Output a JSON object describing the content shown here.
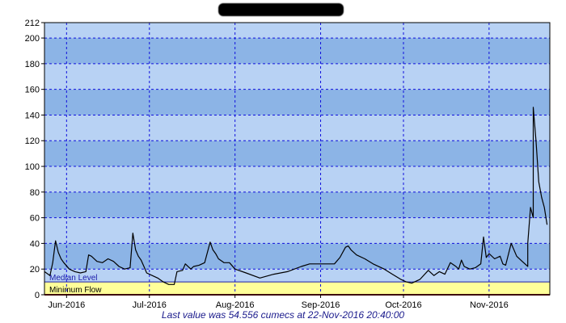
{
  "title": "",
  "footer": "Last value was 54.556 cumecs at 22-Nov-2016 20:40:00",
  "colors": {
    "band_dark": "#8cb4e6",
    "band_light": "#b8d2f4",
    "grid": "#1010dd",
    "median_line": "#1a1aaa",
    "minimum_band": "#ffff99",
    "minimum_line": "#7a0f0f",
    "series": "#000000",
    "footer_text": "#1a1a8c"
  },
  "chart_data": {
    "type": "line",
    "xlabel": "",
    "ylabel": "",
    "x_range": [
      "2016-05-24",
      "2016-11-23"
    ],
    "ylim": [
      0,
      212
    ],
    "yticks": [
      0,
      20,
      40,
      60,
      80,
      100,
      120,
      140,
      160,
      180,
      200,
      212
    ],
    "xticks": [
      {
        "date": "2016-06-01",
        "label": "Jun-2016"
      },
      {
        "date": "2016-07-01",
        "label": "Jul-2016"
      },
      {
        "date": "2016-08-01",
        "label": "Aug-2016"
      },
      {
        "date": "2016-09-01",
        "label": "Sep-2016"
      },
      {
        "date": "2016-10-01",
        "label": "Oct-2016"
      },
      {
        "date": "2016-11-01",
        "label": "Nov-2016"
      }
    ],
    "grid": true,
    "reference_levels": [
      {
        "name": "Median Level",
        "value": 10
      },
      {
        "name": "Minimum Flow",
        "value": 0
      }
    ],
    "series": [
      {
        "x": [
          "2016-05-24",
          "2016-05-26",
          "2016-05-27",
          "2016-05-28",
          "2016-05-29",
          "2016-05-30",
          "2016-05-31",
          "2016-06-02",
          "2016-06-04",
          "2016-06-06",
          "2016-06-08",
          "2016-06-09",
          "2016-06-10",
          "2016-06-12",
          "2016-06-14",
          "2016-06-16",
          "2016-06-18",
          "2016-06-20",
          "2016-06-22",
          "2016-06-24",
          "2016-06-25",
          "2016-06-26",
          "2016-06-27",
          "2016-06-28",
          "2016-06-29",
          "2016-06-30",
          "2016-07-02",
          "2016-07-04",
          "2016-07-06",
          "2016-07-08",
          "2016-07-10",
          "2016-07-11",
          "2016-07-13",
          "2016-07-14",
          "2016-07-16",
          "2016-07-17",
          "2016-07-19",
          "2016-07-21",
          "2016-07-23",
          "2016-07-24",
          "2016-07-25",
          "2016-07-26",
          "2016-07-28",
          "2016-07-30",
          "2016-08-01",
          "2016-08-05",
          "2016-08-10",
          "2016-08-15",
          "2016-08-20",
          "2016-08-25",
          "2016-08-28",
          "2016-08-31",
          "2016-09-03",
          "2016-09-06",
          "2016-09-08",
          "2016-09-10",
          "2016-09-11",
          "2016-09-12",
          "2016-09-14",
          "2016-09-17",
          "2016-09-20",
          "2016-09-24",
          "2016-09-27",
          "2016-09-30",
          "2016-10-02",
          "2016-10-04",
          "2016-10-05",
          "2016-10-07",
          "2016-10-10",
          "2016-10-12",
          "2016-10-14",
          "2016-10-16",
          "2016-10-18",
          "2016-10-20",
          "2016-10-21",
          "2016-10-22",
          "2016-10-23",
          "2016-10-25",
          "2016-10-27",
          "2016-10-29",
          "2016-10-30",
          "2016-10-31",
          "2016-11-01",
          "2016-11-03",
          "2016-11-05",
          "2016-11-06",
          "2016-11-07",
          "2016-11-09",
          "2016-11-11",
          "2016-11-13",
          "2016-11-14",
          "2016-11-15",
          "2016-11-15",
          "2016-11-16",
          "2016-11-17",
          "2016-11-17",
          "2016-11-18",
          "2016-11-19",
          "2016-11-20",
          "2016-11-21",
          "2016-11-22"
        ],
        "y": [
          18,
          15,
          25,
          42,
          33,
          28,
          25,
          20,
          18,
          17,
          18,
          31,
          30,
          26,
          25,
          28,
          26,
          22,
          20,
          21,
          48,
          35,
          30,
          27,
          22,
          17,
          15,
          13,
          10,
          8,
          8,
          18,
          19,
          24,
          20,
          22,
          23,
          25,
          41,
          35,
          32,
          28,
          25,
          25,
          20,
          17,
          13,
          16,
          18,
          22,
          24,
          24,
          24,
          24,
          29,
          37,
          38,
          35,
          31,
          28,
          24,
          20,
          16,
          12,
          10,
          9,
          10,
          12,
          19,
          15,
          18,
          16,
          25,
          22,
          20,
          27,
          22,
          20,
          21,
          24,
          45,
          29,
          32,
          28,
          30,
          24,
          23,
          40,
          30,
          26,
          24,
          22,
          40,
          68,
          60,
          146,
          120,
          88,
          76,
          68,
          54.556
        ]
      }
    ]
  }
}
